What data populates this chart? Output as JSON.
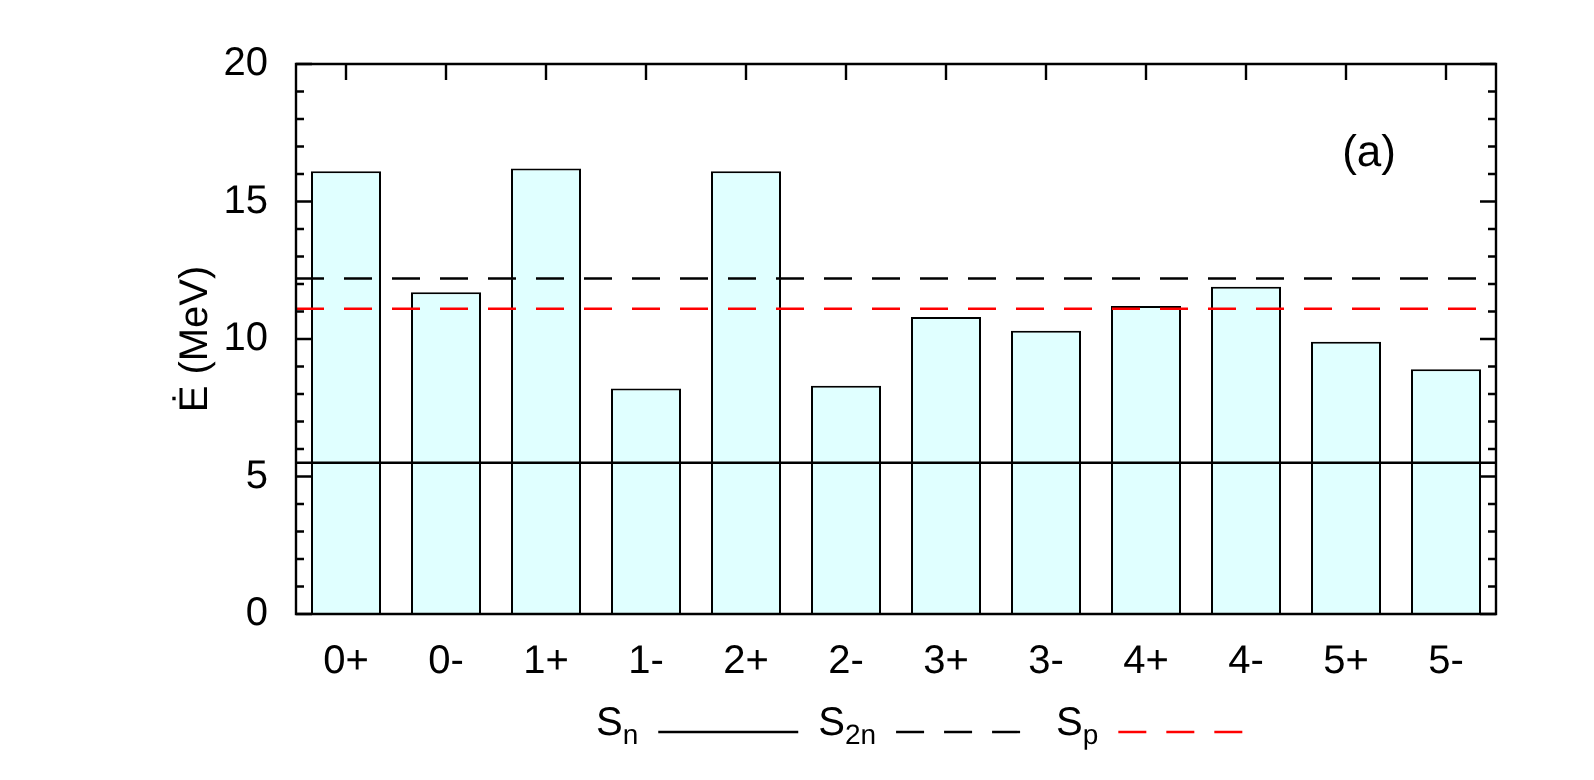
{
  "chart_data": {
    "type": "bar",
    "ylabel": "Ė (MeV)",
    "annotations": [
      "(a)"
    ],
    "categories": [
      "0+",
      "0-",
      "1+",
      "1-",
      "2+",
      "2-",
      "3+",
      "3-",
      "4+",
      "4-",
      "5+",
      "5-"
    ],
    "values": [
      16.1,
      11.7,
      16.2,
      8.2,
      16.1,
      8.3,
      10.8,
      10.3,
      11.2,
      11.9,
      9.9,
      8.9
    ],
    "color": "#e0ffff",
    "ylim": [
      0,
      20
    ],
    "yticks": [
      0,
      {
        "value": 1,
        "label": null
      },
      {
        "value": 2,
        "label": null
      },
      {
        "value": 3,
        "label": null
      },
      {
        "value": 4,
        "label": null
      },
      5,
      {
        "value": 6,
        "label": null
      },
      {
        "value": 7,
        "label": null
      },
      {
        "value": 8,
        "label": null
      },
      {
        "value": 9,
        "label": null
      },
      10,
      {
        "value": 11,
        "label": null
      },
      {
        "value": 12,
        "label": null
      },
      {
        "value": 13,
        "label": null
      },
      {
        "value": 14,
        "label": null
      },
      15,
      {
        "value": 16,
        "label": null
      },
      {
        "value": 17,
        "label": null
      },
      {
        "value": 18,
        "label": null
      },
      {
        "value": 19,
        "label": null
      },
      20
    ],
    "ref_lines": [
      {
        "axis": "y",
        "value": 5.5,
        "label": "S$_{n}$",
        "color": "#000000",
        "line_style": "solid"
      },
      {
        "axis": "y",
        "value": 12.2,
        "label": "S$_{2n}$",
        "color": "#000000",
        "line_style": "dashed"
      },
      {
        "axis": "y",
        "value": 11.1,
        "label": "S$_{p}$",
        "color": "#ff0000",
        "line_style": "dashed"
      }
    ],
    "grid": false,
    "legend": "bottom"
  }
}
